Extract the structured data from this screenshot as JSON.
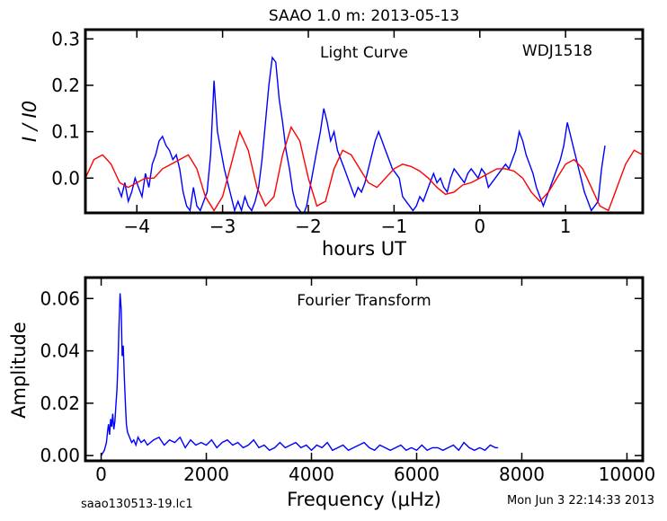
{
  "page": {
    "title": "SAAO 1.0 m:  2013-05-13",
    "footer_left": "saao130513-19.lc1",
    "footer_right": "Mon Jun  3 22:14:33 2013"
  },
  "chart_data": [
    {
      "type": "line",
      "title": "Light Curve",
      "annotation": "WDJ1518",
      "xlabel": "hours UT",
      "ylabel": "I / I0",
      "xlim": [
        -4.6,
        1.9
      ],
      "ylim": [
        -0.075,
        0.32
      ],
      "xticks": [
        -4,
        -3,
        -2,
        -1,
        0,
        1
      ],
      "yticks": [
        0.3,
        0.2,
        0.1,
        0.0
      ],
      "ytick_labels": [
        "0.3",
        "0.2",
        "0.1",
        "0.0"
      ],
      "grid": false,
      "series": [
        {
          "color": "#0000ff",
          "x": [
            -4.22,
            -4.18,
            -4.14,
            -4.1,
            -4.06,
            -4.02,
            -3.98,
            -3.94,
            -3.9,
            -3.86,
            -3.82,
            -3.78,
            -3.74,
            -3.7,
            -3.66,
            -3.62,
            -3.58,
            -3.54,
            -3.5,
            -3.46,
            -3.42,
            -3.38,
            -3.34,
            -3.3,
            -3.26,
            -3.22,
            -3.18,
            -3.14,
            -3.1,
            -3.06,
            -3.02,
            -2.98,
            -2.94,
            -2.9,
            -2.86,
            -2.82,
            -2.78,
            -2.74,
            -2.7,
            -2.66,
            -2.62,
            -2.58,
            -2.54,
            -2.5,
            -2.46,
            -2.42,
            -2.38,
            -2.34,
            -2.3,
            -2.26,
            -2.22,
            -2.18,
            -2.14,
            -2.1,
            -2.06,
            -2.02,
            -1.98,
            -1.94,
            -1.9,
            -1.86,
            -1.82,
            -1.78,
            -1.74,
            -1.7,
            -1.66,
            -1.62,
            -1.58,
            -1.54,
            -1.5,
            -1.46,
            -1.42,
            -1.38,
            -1.34,
            -1.3,
            -1.26,
            -1.22,
            -1.18,
            -1.14,
            -1.1,
            -1.06,
            -1.02,
            -0.98,
            -0.94,
            -0.9,
            -0.86,
            -0.82,
            -0.78,
            -0.74,
            -0.7,
            -0.66,
            -0.62,
            -0.58,
            -0.54,
            -0.5,
            -0.46,
            -0.42,
            -0.38,
            -0.34,
            -0.3,
            -0.26,
            -0.22,
            -0.18,
            -0.14,
            -0.1,
            -0.06,
            -0.02,
            0.02,
            0.06,
            0.1,
            0.14,
            0.18,
            0.22,
            0.26,
            0.3,
            0.34,
            0.38,
            0.42,
            0.46,
            0.5,
            0.54,
            0.58,
            0.62,
            0.66,
            0.7,
            0.74,
            0.78,
            0.82,
            0.86,
            0.9,
            0.94,
            0.98,
            1.02,
            1.06,
            1.1,
            1.14,
            1.18,
            1.22,
            1.26,
            1.3,
            1.34,
            1.38,
            1.42,
            1.46
          ],
          "y": [
            -0.02,
            -0.04,
            -0.01,
            -0.05,
            -0.03,
            0.0,
            -0.02,
            -0.04,
            0.01,
            -0.02,
            0.03,
            0.05,
            0.08,
            0.09,
            0.07,
            0.06,
            0.04,
            0.05,
            0.02,
            -0.03,
            -0.06,
            -0.07,
            -0.02,
            -0.06,
            -0.07,
            -0.05,
            -0.03,
            0.05,
            0.21,
            0.1,
            0.06,
            0.02,
            -0.01,
            -0.04,
            -0.07,
            -0.05,
            -0.07,
            -0.04,
            -0.06,
            -0.07,
            -0.05,
            -0.02,
            0.04,
            0.12,
            0.2,
            0.26,
            0.25,
            0.17,
            0.12,
            0.06,
            0.02,
            -0.03,
            -0.06,
            -0.07,
            -0.08,
            -0.06,
            -0.02,
            0.02,
            0.06,
            0.1,
            0.15,
            0.12,
            0.08,
            0.1,
            0.06,
            0.04,
            0.02,
            0.0,
            -0.02,
            -0.04,
            -0.02,
            -0.03,
            -0.01,
            0.02,
            0.05,
            0.08,
            0.1,
            0.08,
            0.06,
            0.04,
            0.02,
            0.01,
            0.0,
            -0.04,
            -0.05,
            -0.06,
            -0.07,
            -0.06,
            -0.04,
            -0.05,
            -0.03,
            -0.01,
            0.01,
            -0.01,
            0.0,
            -0.02,
            -0.03,
            0.0,
            0.02,
            0.01,
            0.0,
            -0.01,
            0.01,
            0.02,
            0.01,
            0.0,
            0.02,
            0.01,
            -0.02,
            -0.01,
            0.0,
            0.01,
            0.02,
            0.03,
            0.02,
            0.04,
            0.06,
            0.1,
            0.08,
            0.05,
            0.03,
            0.01,
            -0.02,
            -0.04,
            -0.06,
            -0.04,
            -0.02,
            0.0,
            0.02,
            0.04,
            0.07,
            0.12,
            0.09,
            0.06,
            0.03,
            0.0,
            -0.03,
            -0.05,
            -0.07,
            -0.06,
            -0.05,
            0.02,
            0.07
          ]
        },
        {
          "color": "#ff0000",
          "x": [
            -4.6,
            -4.5,
            -4.4,
            -4.3,
            -4.2,
            -4.1,
            -4.0,
            -3.9,
            -3.8,
            -3.7,
            -3.6,
            -3.5,
            -3.4,
            -3.3,
            -3.2,
            -3.1,
            -3.0,
            -2.9,
            -2.8,
            -2.7,
            -2.6,
            -2.5,
            -2.4,
            -2.3,
            -2.2,
            -2.1,
            -2.0,
            -1.9,
            -1.8,
            -1.7,
            -1.6,
            -1.5,
            -1.4,
            -1.3,
            -1.2,
            -1.1,
            -1.0,
            -0.9,
            -0.8,
            -0.7,
            -0.6,
            -0.5,
            -0.4,
            -0.3,
            -0.2,
            -0.1,
            0.0,
            0.1,
            0.2,
            0.3,
            0.4,
            0.5,
            0.6,
            0.7,
            0.8,
            0.9,
            1.0,
            1.1,
            1.2,
            1.3,
            1.4,
            1.5,
            1.6,
            1.7,
            1.8,
            1.9
          ],
          "y": [
            0.0,
            0.04,
            0.05,
            0.03,
            -0.01,
            -0.02,
            -0.01,
            0.0,
            0.0,
            0.02,
            0.03,
            0.04,
            0.05,
            0.02,
            -0.04,
            -0.07,
            -0.04,
            0.03,
            0.1,
            0.06,
            -0.02,
            -0.06,
            -0.04,
            0.05,
            0.11,
            0.08,
            0.0,
            -0.06,
            -0.05,
            0.02,
            0.06,
            0.05,
            0.02,
            -0.01,
            -0.02,
            0.0,
            0.02,
            0.03,
            0.025,
            0.015,
            0.0,
            -0.02,
            -0.035,
            -0.03,
            -0.015,
            -0.01,
            0.0,
            0.01,
            0.02,
            0.02,
            0.015,
            0.0,
            -0.03,
            -0.05,
            -0.03,
            0.0,
            0.03,
            0.04,
            0.02,
            -0.02,
            -0.06,
            -0.07,
            -0.02,
            0.03,
            0.06,
            0.05
          ]
        }
      ]
    },
    {
      "type": "line",
      "title": "Fourier Transform",
      "xlabel": "Frequency (μHz)",
      "ylabel": "Amplitude",
      "xlim": [
        -300,
        10300
      ],
      "ylim": [
        -0.002,
        0.068
      ],
      "xticks": [
        0,
        2000,
        4000,
        6000,
        8000,
        10000
      ],
      "yticks": [
        0.06,
        0.04,
        0.02,
        0.0
      ],
      "ytick_labels": [
        "0.06",
        "0.04",
        "0.02",
        "0.00"
      ],
      "grid": false,
      "series": [
        {
          "color": "#0000ff",
          "x": [
            0,
            60,
            100,
            120,
            140,
            160,
            180,
            200,
            220,
            240,
            260,
            280,
            300,
            320,
            340,
            360,
            380,
            400,
            420,
            440,
            460,
            480,
            500,
            540,
            580,
            620,
            660,
            700,
            760,
            820,
            880,
            940,
            1000,
            1100,
            1200,
            1300,
            1400,
            1500,
            1600,
            1700,
            1800,
            1900,
            2000,
            2100,
            2200,
            2300,
            2400,
            2500,
            2600,
            2700,
            2800,
            2900,
            3000,
            3100,
            3200,
            3300,
            3400,
            3500,
            3600,
            3700,
            3800,
            3900,
            4000,
            4100,
            4200,
            4300,
            4400,
            4500,
            4600,
            4700,
            4800,
            4900,
            5000,
            5100,
            5200,
            5300,
            5400,
            5500,
            5600,
            5700,
            5800,
            5900,
            6000,
            6100,
            6200,
            6300,
            6400,
            6500,
            6600,
            6700,
            6800,
            6900,
            7000,
            7100,
            7200,
            7300,
            7400,
            7500,
            7550
          ],
          "y": [
            0.0,
            0.002,
            0.005,
            0.009,
            0.012,
            0.008,
            0.014,
            0.011,
            0.016,
            0.01,
            0.013,
            0.019,
            0.025,
            0.036,
            0.05,
            0.062,
            0.056,
            0.038,
            0.042,
            0.03,
            0.02,
            0.012,
            0.009,
            0.007,
            0.005,
            0.006,
            0.004,
            0.007,
            0.005,
            0.006,
            0.004,
            0.005,
            0.006,
            0.007,
            0.004,
            0.006,
            0.005,
            0.007,
            0.003,
            0.006,
            0.004,
            0.005,
            0.004,
            0.006,
            0.003,
            0.005,
            0.006,
            0.004,
            0.005,
            0.003,
            0.004,
            0.006,
            0.003,
            0.004,
            0.002,
            0.003,
            0.005,
            0.003,
            0.004,
            0.005,
            0.003,
            0.004,
            0.002,
            0.004,
            0.003,
            0.005,
            0.002,
            0.003,
            0.004,
            0.002,
            0.003,
            0.004,
            0.005,
            0.003,
            0.002,
            0.004,
            0.003,
            0.002,
            0.003,
            0.004,
            0.002,
            0.003,
            0.002,
            0.004,
            0.002,
            0.003,
            0.003,
            0.002,
            0.003,
            0.004,
            0.002,
            0.005,
            0.003,
            0.002,
            0.003,
            0.002,
            0.004,
            0.003,
            0.003
          ]
        }
      ]
    }
  ]
}
